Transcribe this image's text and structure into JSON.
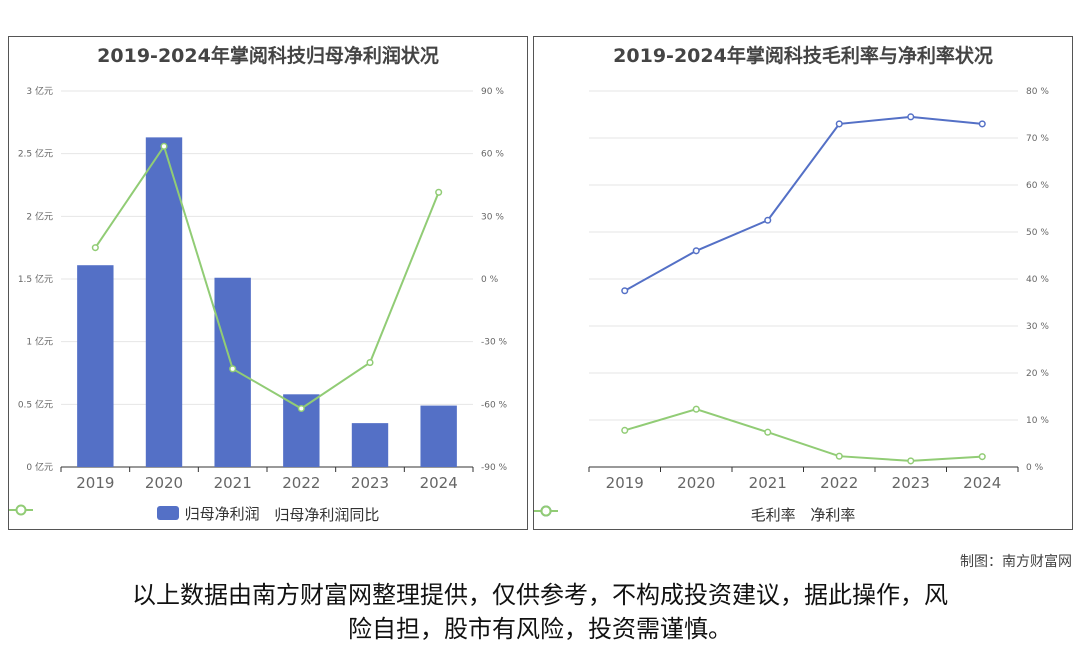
{
  "colors": {
    "primary": "#5470c6",
    "secondary": "#91cc75",
    "axis": "#666666",
    "grid": "#e6e6e6"
  },
  "chart_data": [
    {
      "type": "bar",
      "title": "2019-2024年掌阅科技归母净利润状况",
      "categories": [
        "2019",
        "2020",
        "2021",
        "2022",
        "2023",
        "2024"
      ],
      "y_left": {
        "ticks": [
          "0 亿元",
          "0.5 亿元",
          "1 亿元",
          "1.5 亿元",
          "2 亿元",
          "2.5 亿元",
          "3 亿元"
        ],
        "ylim": [
          0,
          3
        ]
      },
      "y_right": {
        "ticks": [
          "-90 %",
          "-60 %",
          "-30 %",
          "0 %",
          "30 %",
          "60 %",
          "90 %"
        ],
        "ylim": [
          -90,
          90
        ]
      },
      "series": [
        {
          "name": "归母净利润",
          "type": "bar",
          "axis": "left",
          "values": [
            1.61,
            2.63,
            1.51,
            0.58,
            0.35,
            0.49
          ]
        },
        {
          "name": "归母净利润同比",
          "type": "line",
          "axis": "right",
          "values": [
            15.0,
            63.5,
            -43.0,
            -62.0,
            -40.0,
            41.5
          ]
        }
      ],
      "legend_position": "bottom-center"
    },
    {
      "type": "line",
      "title": "2019-2024年掌阅科技毛利率与净利率状况",
      "categories": [
        "2019",
        "2020",
        "2021",
        "2022",
        "2023",
        "2024"
      ],
      "y_right": {
        "ticks": [
          "0 %",
          "10 %",
          "20 %",
          "30 %",
          "40 %",
          "50 %",
          "60 %",
          "70 %",
          "80 %"
        ],
        "ylim": [
          0,
          80
        ]
      },
      "series": [
        {
          "name": "毛利率",
          "axis": "right",
          "values": [
            37.5,
            46.0,
            52.5,
            73.0,
            74.5,
            73.0
          ]
        },
        {
          "name": "净利率",
          "axis": "right",
          "values": [
            7.8,
            12.3,
            7.4,
            2.3,
            1.3,
            2.2
          ]
        }
      ],
      "legend_position": "bottom-center"
    }
  ],
  "footer": {
    "credit": "制图：南方财富网",
    "disclaimer_line1": "以上数据由南方财富网整理提供，仅供参考，不构成投资建议，据此操作，风",
    "disclaimer_line2": "险自担，股市有风险，投资需谨慎。"
  }
}
